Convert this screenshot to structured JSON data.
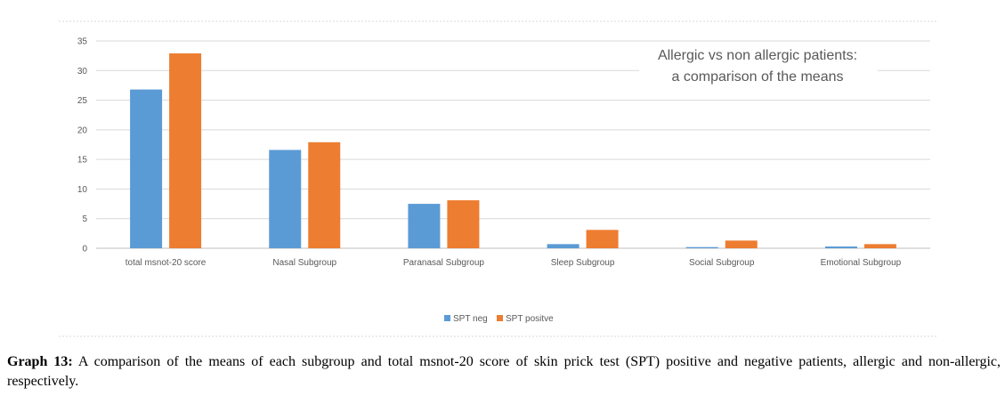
{
  "chart_data": {
    "type": "bar",
    "categories": [
      "total msnot-20 score",
      "Nasal Subgroup",
      "Paranasal Subgroup",
      "Sleep Subgroup",
      "Social Subgroup",
      "Emotional Subgroup"
    ],
    "series": [
      {
        "name": "SPT neg",
        "color": "#5b9bd5",
        "values": [
          26.8,
          16.6,
          7.5,
          0.7,
          0.2,
          0.3
        ]
      },
      {
        "name": "SPT positive",
        "color": "#ed7d31",
        "values": [
          32.9,
          17.9,
          8.1,
          3.1,
          1.3,
          0.7
        ]
      }
    ],
    "yticks": [
      "0",
      "5",
      "10",
      "15",
      "20",
      "25",
      "30",
      "35"
    ],
    "ylim": [
      0,
      35
    ],
    "grid": true,
    "legend_position": "bottom",
    "annotation_lines": [
      "Allergic vs non allergic patients:",
      "a comparison of the means"
    ],
    "title": "",
    "xlabel": "",
    "ylabel": ""
  },
  "legend": {
    "neg_label": "SPT neg",
    "pos_label": "SPT positve"
  },
  "caption": {
    "label": "Graph 13:",
    "text": " A comparison of the means of each subgroup and total msnot-20 score of skin prick test (SPT) positive and negative patients, allergic and non-allergic, respectively."
  }
}
